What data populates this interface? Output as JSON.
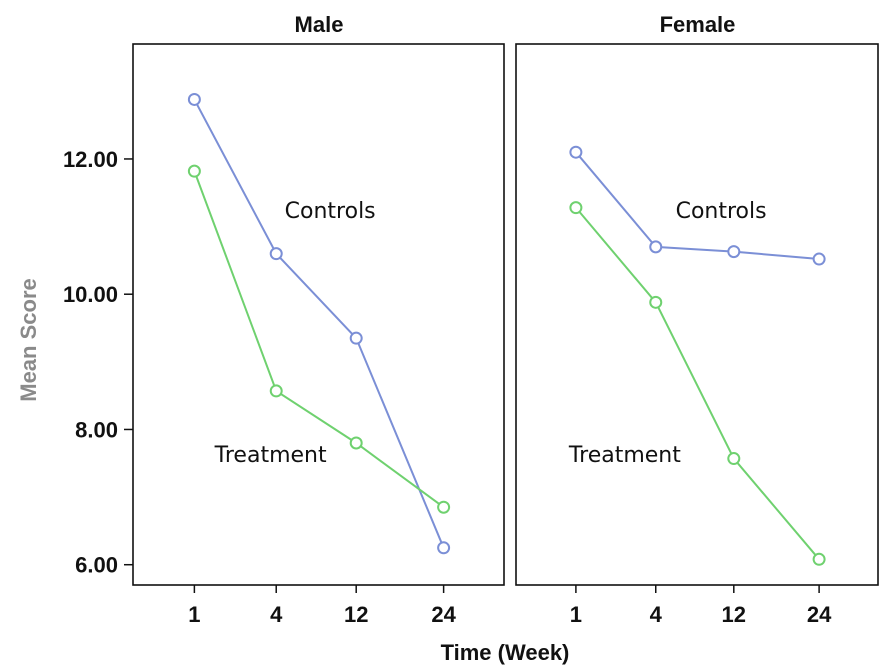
{
  "chart_data": {
    "type": "line",
    "ylabel": "Mean Score",
    "xlabel": "Time (Week)",
    "x_categories": [
      "1",
      "4",
      "12",
      "24"
    ],
    "ylim": [
      5.7,
      13.7
    ],
    "yticks": [
      6.0,
      8.0,
      10.0,
      12.0
    ],
    "ytick_labels": [
      "6.00",
      "8.00",
      "10.00",
      "12.00"
    ],
    "grid": false,
    "colors": {
      "Controls": "#7b8fd6",
      "Treatment": "#6fd16f"
    },
    "panels": [
      {
        "title": "Male",
        "series": [
          {
            "name": "Controls",
            "values": [
              12.88,
              10.6,
              9.35,
              6.25
            ]
          },
          {
            "name": "Treatment",
            "values": [
              11.82,
              8.57,
              7.8,
              6.85
            ]
          }
        ],
        "annotations": [
          {
            "text": "Controls",
            "series": "Controls"
          },
          {
            "text": "Treatment",
            "series": "Treatment"
          }
        ]
      },
      {
        "title": "Female",
        "series": [
          {
            "name": "Controls",
            "values": [
              12.1,
              10.7,
              10.63,
              10.52
            ]
          },
          {
            "name": "Treatment",
            "values": [
              11.28,
              9.88,
              7.57,
              6.08
            ]
          }
        ],
        "annotations": [
          {
            "text": "Controls",
            "series": "Controls"
          },
          {
            "text": "Treatment",
            "series": "Treatment"
          }
        ]
      }
    ]
  }
}
